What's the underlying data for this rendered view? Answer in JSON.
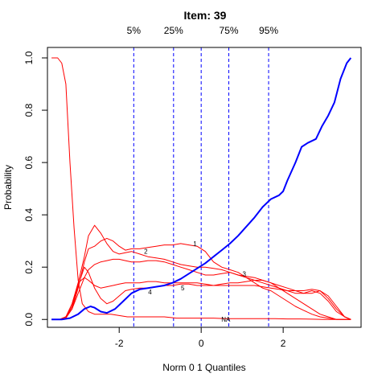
{
  "chart_data": {
    "type": "line",
    "title": "Item:  39",
    "xlabel": "Norm 0 1 Quantiles",
    "ylabel": "Probability",
    "xlim": [
      -3.75,
      3.9
    ],
    "ylim": [
      -0.03,
      1.04
    ],
    "x_ticks": [
      -2,
      0,
      2
    ],
    "x_tick_labels": [
      "-2",
      "0",
      "2"
    ],
    "y_ticks": [
      0.0,
      0.2,
      0.4,
      0.6,
      0.8,
      1.0
    ],
    "y_tick_labels": [
      "0.0",
      "0.2",
      "0.4",
      "0.6",
      "0.8",
      "1.0"
    ],
    "quantiles": [
      {
        "label": "5%",
        "x": -1.645
      },
      {
        "label": "25%",
        "x": -0.674
      },
      {
        "label": "",
        "x": 0
      },
      {
        "label": "75%",
        "x": 0.674
      },
      {
        "label": "95%",
        "x": 1.645
      }
    ],
    "grid": false,
    "colors": {
      "options": "#ff0000",
      "key": "#0000ff",
      "quantile": "#0000ff",
      "axis": "#000000"
    },
    "series": [
      {
        "name": "1",
        "color": "#ff0000",
        "label_at": [
          -0.15,
          0.29
        ],
        "x": [
          -3.65,
          -3.45,
          -3.3,
          -3.15,
          -3.0,
          -2.85,
          -2.75,
          -2.6,
          -2.45,
          -2.3,
          -2.15,
          -2.0,
          -1.85,
          -1.7,
          -1.5,
          -1.3,
          -1.1,
          -0.9,
          -0.7,
          -0.5,
          -0.3,
          -0.1,
          0.1,
          0.3,
          0.5,
          0.7,
          0.9,
          1.1,
          1.3,
          1.5,
          1.7,
          1.9,
          2.1,
          2.3,
          2.5,
          2.7,
          2.9,
          3.1,
          3.3,
          3.5,
          3.65
        ],
        "y": [
          0,
          0,
          0.005,
          0.04,
          0.12,
          0.22,
          0.27,
          0.28,
          0.3,
          0.31,
          0.3,
          0.28,
          0.265,
          0.27,
          0.27,
          0.275,
          0.28,
          0.285,
          0.285,
          0.29,
          0.285,
          0.28,
          0.26,
          0.22,
          0.2,
          0.19,
          0.18,
          0.16,
          0.14,
          0.12,
          0.11,
          0.09,
          0.07,
          0.05,
          0.035,
          0.02,
          0.01,
          0.005,
          0,
          0,
          0
        ]
      },
      {
        "name": "2",
        "color": "#ff0000",
        "label_at": [
          -1.35,
          0.26
        ],
        "x": [
          -3.65,
          -3.45,
          -3.3,
          -3.15,
          -3.0,
          -2.85,
          -2.75,
          -2.6,
          -2.45,
          -2.3,
          -2.15,
          -2.0,
          -1.85,
          -1.7,
          -1.5,
          -1.3,
          -1.1,
          -0.9,
          -0.7,
          -0.5,
          -0.3,
          -0.1,
          0.1,
          0.3,
          0.5,
          0.7,
          0.9,
          1.1,
          1.3,
          1.5,
          1.7,
          1.9,
          2.1,
          2.3,
          2.5,
          2.7,
          2.9,
          3.1,
          3.3,
          3.5,
          3.65
        ],
        "y": [
          0,
          0,
          0.01,
          0.05,
          0.14,
          0.24,
          0.32,
          0.36,
          0.33,
          0.29,
          0.26,
          0.25,
          0.255,
          0.26,
          0.25,
          0.24,
          0.235,
          0.23,
          0.22,
          0.21,
          0.205,
          0.2,
          0.2,
          0.195,
          0.19,
          0.18,
          0.17,
          0.165,
          0.16,
          0.15,
          0.14,
          0.12,
          0.1,
          0.08,
          0.06,
          0.04,
          0.02,
          0.01,
          0,
          0,
          0
        ]
      },
      {
        "name": "3",
        "color": "#ff0000",
        "label_at": [
          1.05,
          0.175
        ],
        "x": [
          -3.65,
          -3.45,
          -3.3,
          -3.15,
          -3.0,
          -2.85,
          -2.75,
          -2.6,
          -2.45,
          -2.3,
          -2.15,
          -2.0,
          -1.85,
          -1.7,
          -1.5,
          -1.3,
          -1.1,
          -0.9,
          -0.7,
          -0.5,
          -0.3,
          -0.1,
          0.1,
          0.3,
          0.5,
          0.7,
          0.9,
          1.1,
          1.3,
          1.5,
          1.7,
          1.9,
          2.1,
          2.3,
          2.5,
          2.7,
          2.9,
          3.1,
          3.3,
          3.5,
          3.65
        ],
        "y": [
          0,
          0,
          0.01,
          0.04,
          0.1,
          0.16,
          0.19,
          0.21,
          0.22,
          0.225,
          0.23,
          0.23,
          0.225,
          0.22,
          0.22,
          0.225,
          0.225,
          0.22,
          0.21,
          0.2,
          0.19,
          0.18,
          0.17,
          0.17,
          0.175,
          0.18,
          0.17,
          0.16,
          0.15,
          0.14,
          0.13,
          0.12,
          0.11,
          0.1,
          0.1,
          0.11,
          0.1,
          0.07,
          0.03,
          0.01,
          0
        ]
      },
      {
        "name": "4",
        "color": "#ff0000",
        "label_at": [
          -1.25,
          0.105
        ],
        "x": [
          -3.65,
          -3.45,
          -3.3,
          -3.15,
          -3.0,
          -2.85,
          -2.75,
          -2.6,
          -2.45,
          -2.3,
          -2.15,
          -2.0,
          -1.85,
          -1.7,
          -1.5,
          -1.3,
          -1.1,
          -0.9,
          -0.7,
          -0.5,
          -0.3,
          -0.1,
          0.1,
          0.3,
          0.5,
          0.7,
          0.9,
          1.1,
          1.3,
          1.5,
          1.7,
          1.9,
          2.1,
          2.3,
          2.5,
          2.7,
          2.9,
          3.1,
          3.3,
          3.5,
          3.65
        ],
        "y": [
          0,
          0,
          0.005,
          0.05,
          0.13,
          0.2,
          0.18,
          0.12,
          0.08,
          0.06,
          0.07,
          0.09,
          0.11,
          0.115,
          0.12,
          0.12,
          0.125,
          0.13,
          0.13,
          0.135,
          0.135,
          0.13,
          0.13,
          0.13,
          0.135,
          0.14,
          0.14,
          0.145,
          0.15,
          0.15,
          0.14,
          0.13,
          0.12,
          0.11,
          0.1,
          0.1,
          0.11,
          0.09,
          0.05,
          0.01,
          0
        ]
      },
      {
        "name": "5",
        "color": "#ff0000",
        "label_at": [
          -0.45,
          0.12
        ],
        "x": [
          -3.65,
          -3.45,
          -3.3,
          -3.15,
          -3.0,
          -2.85,
          -2.75,
          -2.6,
          -2.45,
          -2.3,
          -2.15,
          -2.0,
          -1.85,
          -1.7,
          -1.5,
          -1.3,
          -1.1,
          -0.9,
          -0.7,
          -0.5,
          -0.3,
          -0.1,
          0.1,
          0.3,
          0.5,
          0.7,
          0.9,
          1.1,
          1.3,
          1.5,
          1.7,
          1.9,
          2.1,
          2.3,
          2.5,
          2.7,
          2.9,
          3.1,
          3.3,
          3.5,
          3.65
        ],
        "y": [
          0,
          0,
          0.01,
          0.06,
          0.14,
          0.16,
          0.15,
          0.13,
          0.12,
          0.125,
          0.13,
          0.135,
          0.14,
          0.14,
          0.14,
          0.145,
          0.145,
          0.14,
          0.14,
          0.14,
          0.14,
          0.14,
          0.135,
          0.13,
          0.13,
          0.13,
          0.13,
          0.13,
          0.13,
          0.125,
          0.12,
          0.115,
          0.11,
          0.11,
          0.11,
          0.115,
          0.11,
          0.08,
          0.04,
          0.01,
          0
        ]
      },
      {
        "name": "NA",
        "color": "#ff0000",
        "label_at": [
          0.6,
          0.0
        ],
        "x": [
          -3.65,
          -3.5,
          -3.4,
          -3.3,
          -3.2,
          -3.1,
          -3.0,
          -2.9,
          -2.75,
          -2.6,
          -2.4,
          -2.2,
          -2.0,
          -1.8,
          -1.5,
          -1.2,
          -0.9,
          -0.6,
          -0.3,
          0.0,
          0.3,
          0.6,
          0.9,
          1.2,
          1.5,
          1.8,
          2.1,
          2.4,
          2.7,
          3.0,
          3.3,
          3.65
        ],
        "y": [
          1.0,
          1.0,
          0.98,
          0.9,
          0.6,
          0.35,
          0.15,
          0.06,
          0.03,
          0.02,
          0.02,
          0.02,
          0.015,
          0.01,
          0.01,
          0.01,
          0.01,
          0.005,
          0.005,
          0.005,
          0.005,
          0.003,
          0.003,
          0.003,
          0.003,
          0.003,
          0.002,
          0.002,
          0.001,
          0,
          0,
          0
        ]
      },
      {
        "name": "key",
        "color": "#0000ff",
        "bold": true,
        "x": [
          -3.65,
          -3.4,
          -3.2,
          -3.0,
          -2.85,
          -2.7,
          -2.6,
          -2.45,
          -2.3,
          -2.1,
          -1.9,
          -1.7,
          -1.5,
          -1.3,
          -1.1,
          -0.9,
          -0.7,
          -0.5,
          -0.3,
          -0.1,
          0.1,
          0.3,
          0.5,
          0.7,
          0.9,
          1.1,
          1.3,
          1.5,
          1.7,
          1.9,
          2.0,
          2.1,
          2.3,
          2.45,
          2.6,
          2.8,
          2.95,
          3.1,
          3.25,
          3.4,
          3.55,
          3.65
        ],
        "y": [
          0,
          0,
          0.005,
          0.02,
          0.04,
          0.05,
          0.045,
          0.03,
          0.025,
          0.04,
          0.07,
          0.1,
          0.115,
          0.12,
          0.125,
          0.13,
          0.14,
          0.155,
          0.175,
          0.195,
          0.215,
          0.24,
          0.265,
          0.29,
          0.32,
          0.355,
          0.39,
          0.43,
          0.46,
          0.475,
          0.49,
          0.53,
          0.6,
          0.66,
          0.675,
          0.69,
          0.74,
          0.78,
          0.83,
          0.92,
          0.98,
          1.0
        ]
      }
    ]
  }
}
